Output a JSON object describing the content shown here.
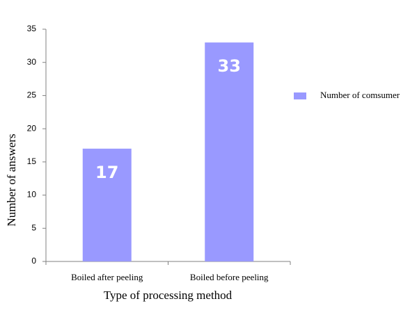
{
  "chart_data": {
    "type": "bar",
    "categories": [
      "Boiled after peeling",
      "Boiled before peeling"
    ],
    "series": [
      {
        "name": "Number of comsumer",
        "values": [
          17,
          33
        ],
        "color": "#9999ff"
      }
    ],
    "data_labels": [
      "17",
      "33"
    ],
    "xlabel": "Type of processing method",
    "ylabel": "Number of answers",
    "ylim": [
      0,
      35
    ],
    "yticks": [
      0,
      5,
      10,
      15,
      20,
      25,
      30,
      35
    ],
    "grid": false,
    "legend_position": "right"
  }
}
